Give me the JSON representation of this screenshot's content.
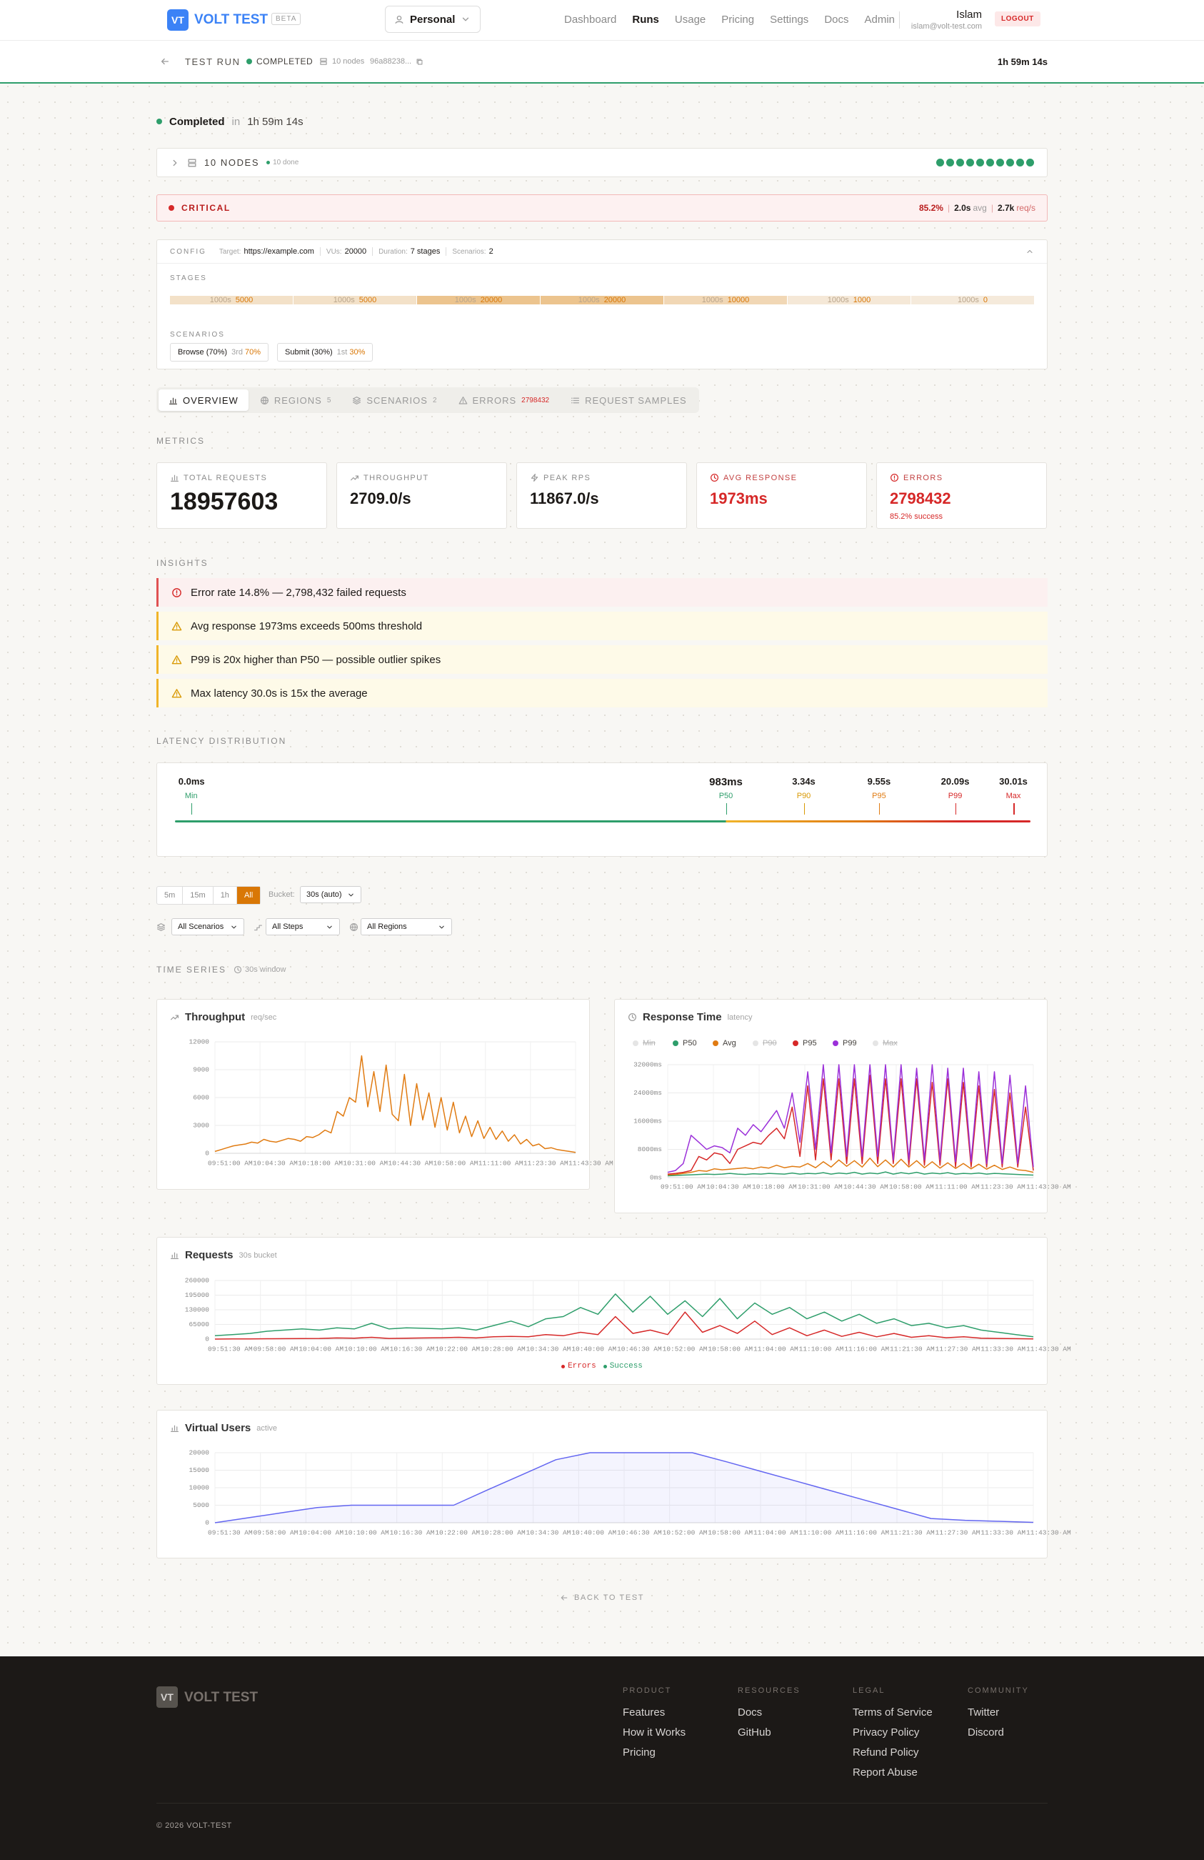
{
  "nav": {
    "logo": "VT",
    "brand": "VOLT TEST",
    "badge": "BETA",
    "workspace": "Personal",
    "links": [
      "Dashboard",
      "Runs",
      "Usage",
      "Pricing",
      "Settings",
      "Docs",
      "Admin"
    ],
    "active_link": 1,
    "user": "Islam",
    "email": "islam@volt-test.com",
    "logout": "LOGOUT"
  },
  "run_bar": {
    "title": "TEST RUN",
    "status": "COMPLETED",
    "nodes": "10 nodes",
    "id": "96a88238...",
    "duration": "1h 59m 14s"
  },
  "summary": {
    "status": "Completed",
    "in": "in",
    "duration": "1h 59m 14s"
  },
  "nodes": {
    "label": "10 NODES",
    "done": "10 done",
    "count": 10
  },
  "critical": {
    "label": "CRITICAL",
    "rate": "85.2%",
    "avg": "2.0s",
    "avg_unit": "avg",
    "rps": "2.7k",
    "rps_unit": "req/s"
  },
  "config": {
    "label": "CONFIG",
    "target_label": "Target:",
    "target": "https://example.com",
    "vus_label": "VUs:",
    "vus": "20000",
    "duration_label": "Duration:",
    "duration": "7 stages",
    "scenarios_label": "Scenarios:",
    "scenarios": "2",
    "stages_label": "STAGES",
    "stages": [
      {
        "duration": "1000s",
        "target": 5000
      },
      {
        "duration": "1000s",
        "target": 5000
      },
      {
        "duration": "1000s",
        "target": 20000
      },
      {
        "duration": "1000s",
        "target": 20000
      },
      {
        "duration": "1000s",
        "target": 10000
      },
      {
        "duration": "1000s",
        "target": 1000
      },
      {
        "duration": "1000s",
        "target": 0
      }
    ],
    "scenarios_title": "SCENARIOS",
    "scenario_list": [
      {
        "name": "Browse (70%)",
        "order": "3rd",
        "weight": "70%"
      },
      {
        "name": "Submit (30%)",
        "order": "1st",
        "weight": "30%"
      }
    ]
  },
  "tabs": [
    {
      "label": "OVERVIEW",
      "active": true
    },
    {
      "label": "REGIONS",
      "count": 5
    },
    {
      "label": "SCENARIOS",
      "count": 2
    },
    {
      "label": "ERRORS",
      "count": 2798432,
      "alert": true
    },
    {
      "label": "REQUEST SAMPLES"
    }
  ],
  "metrics": {
    "label": "METRICS",
    "cards": [
      {
        "label": "TOTAL REQUESTS",
        "value": "18957603"
      },
      {
        "label": "THROUGHPUT",
        "value": "2709.0/s"
      },
      {
        "label": "PEAK RPS",
        "value": "11867.0/s"
      },
      {
        "label": "AVG RESPONSE",
        "value": "1973ms",
        "alert": true
      },
      {
        "label": "ERRORS",
        "value": "2798432",
        "sub": "85.2% success",
        "alert": true
      }
    ]
  },
  "insights": {
    "label": "INSIGHTS",
    "items": [
      {
        "level": "error",
        "text": "Error rate 14.8% — 2,798,432 failed requests"
      },
      {
        "level": "warning",
        "text": "Avg response 1973ms exceeds 500ms threshold"
      },
      {
        "level": "warning",
        "text": "P99 is 20x higher than P50 — possible outlier spikes"
      },
      {
        "level": "warning",
        "text": "Max latency 30.0s is 15x the average"
      }
    ]
  },
  "latency": {
    "label": "LATENCY DISTRIBUTION",
    "markers": [
      {
        "value": "0.0ms",
        "label": "Min",
        "color": "#2e9e6b"
      },
      {
        "value": "983ms",
        "label": "P50",
        "color": "#2e9e6b"
      },
      {
        "value": "3.34s",
        "label": "P90",
        "color": "#d99a06"
      },
      {
        "value": "9.55s",
        "label": "P95",
        "color": "#e07b12"
      },
      {
        "value": "20.09s",
        "label": "P99",
        "color": "#d62828"
      },
      {
        "value": "30.01s",
        "label": "Max",
        "color": "#d62828"
      }
    ]
  },
  "filters": {
    "ranges": [
      "5m",
      "15m",
      "1h",
      "All"
    ],
    "active_range": 3,
    "bucket_label": "Bucket:",
    "bucket": "30s (auto)",
    "selects": [
      "All Scenarios",
      "All Steps",
      "All Regions"
    ]
  },
  "time_series": {
    "label": "TIME SERIES",
    "window": "30s window"
  },
  "chart_data": [
    {
      "type": "line",
      "title": "Throughput",
      "unit": "req/sec",
      "color": "#e07b12",
      "x_labels": [
        "09:51:00 AM",
        "10:04:30 AM",
        "10:18:00 AM",
        "10:31:00 AM",
        "10:44:30 AM",
        "10:58:00 AM",
        "11:11:00 AM",
        "11:23:30 AM",
        "11:43:30 AM"
      ],
      "values": [
        200,
        400,
        600,
        800,
        900,
        1000,
        1200,
        1100,
        1500,
        1300,
        1200,
        1400,
        1600,
        1500,
        1300,
        1800,
        1700,
        2000,
        2500,
        2200,
        4500,
        4000,
        6000,
        5500,
        10500,
        5000,
        8800,
        4500,
        9500,
        4200,
        3500,
        8500,
        3000,
        7500,
        3600,
        6500,
        2800,
        6000,
        2500,
        5500,
        2200,
        4000,
        1800,
        3500,
        1600,
        2800,
        1500,
        2400,
        1300,
        2000,
        1000,
        1500,
        800,
        1000,
        500,
        600,
        400,
        300,
        200,
        100
      ],
      "ylim": [
        0,
        12000
      ],
      "yticks": [
        0,
        3000,
        6000,
        9000,
        12000
      ],
      "grid": true
    },
    {
      "type": "line",
      "title": "Response Time",
      "unit": "latency",
      "legend": "top",
      "x_labels": [
        "09:51:00 AM",
        "10:04:30 AM",
        "10:18:00 AM",
        "10:31:00 AM",
        "10:44:30 AM",
        "10:58:00 AM",
        "11:11:00 AM",
        "11:23:30 AM",
        "11:43:30 AM"
      ],
      "series": [
        {
          "name": "Min",
          "color": "#d4d4d4",
          "hidden": true
        },
        {
          "name": "P50",
          "color": "#2e9e6b",
          "values": [
            500,
            600,
            700,
            800,
            900,
            1000,
            900,
            1000,
            1200,
            1000,
            900,
            1100,
            1000,
            1200,
            1100,
            1000,
            1300,
            1000,
            1200,
            1100,
            1400,
            1000,
            1300,
            1100,
            1500,
            1000,
            1300,
            1100,
            1600,
            1000,
            1400,
            1100,
            1500,
            1000,
            1300,
            1100,
            1400,
            1000,
            1200,
            1100,
            1300,
            1000,
            1200,
            1100,
            1000,
            900,
            800,
            700
          ]
        },
        {
          "name": "Avg",
          "color": "#e07b12",
          "values": [
            800,
            900,
            1200,
            1500,
            2000,
            1800,
            2500,
            2200,
            2400,
            2600,
            2800,
            2500,
            3000,
            2700,
            3500,
            2800,
            3200,
            3000,
            4000,
            2800,
            4500,
            3000,
            5000,
            3200,
            4800,
            3000,
            5500,
            3100,
            5000,
            3000,
            5200,
            3000,
            4800,
            2800,
            4500,
            2700,
            4200,
            2600,
            4000,
            2500,
            3800,
            2400,
            3500,
            2300,
            3000,
            2200,
            2000,
            1500
          ]
        },
        {
          "name": "P90",
          "color": "#d4d4d4",
          "hidden": true
        },
        {
          "name": "P95",
          "color": "#d62828",
          "values": [
            1000,
            1200,
            1500,
            2000,
            6000,
            5000,
            7000,
            6500,
            4000,
            8000,
            9000,
            10000,
            9500,
            12000,
            14000,
            11000,
            20000,
            6000,
            26000,
            5000,
            28000,
            5000,
            28000,
            4000,
            28000,
            4000,
            29000,
            4000,
            28000,
            4000,
            28000,
            3500,
            28000,
            3500,
            27000,
            3500,
            28000,
            3000,
            27000,
            3000,
            26000,
            3000,
            25000,
            3000,
            24000,
            3000,
            20000,
            2000
          ]
        },
        {
          "name": "P99",
          "color": "#9b30d9",
          "values": [
            1500,
            2000,
            4000,
            12000,
            10000,
            8000,
            9000,
            8500,
            7000,
            14000,
            12000,
            15000,
            13000,
            16000,
            19000,
            14000,
            24000,
            10000,
            30000,
            8000,
            32000,
            7000,
            32000,
            6000,
            32000,
            6000,
            32000,
            6000,
            32000,
            5000,
            32000,
            5000,
            31000,
            5000,
            32000,
            5000,
            31000,
            4500,
            31000,
            4500,
            30000,
            4000,
            30000,
            4000,
            29000,
            4000,
            26000,
            3000
          ]
        },
        {
          "name": "Max",
          "color": "#d4d4d4",
          "hidden": true
        }
      ],
      "ylim": [
        0,
        32000
      ],
      "yticks": [
        {
          "value": 0,
          "label": "0ms"
        },
        {
          "value": 8000,
          "label": "8000ms"
        },
        {
          "value": 16000,
          "label": "16000ms"
        },
        {
          "value": 24000,
          "label": "24000ms"
        },
        {
          "value": 32000,
          "label": "32000ms"
        }
      ],
      "grid": true
    },
    {
      "type": "line",
      "title": "Requests",
      "unit": "30s bucket",
      "legend": "bottom",
      "x_labels": [
        "09:51:30 AM",
        "09:58:00 AM",
        "10:04:00 AM",
        "10:10:00 AM",
        "10:16:30 AM",
        "10:22:00 AM",
        "10:28:00 AM",
        "10:34:30 AM",
        "10:40:00 AM",
        "10:46:30 AM",
        "10:52:00 AM",
        "10:58:00 AM",
        "11:04:00 AM",
        "11:10:00 AM",
        "11:16:00 AM",
        "11:21:30 AM",
        "11:27:30 AM",
        "11:33:30 AM",
        "11:43:30 AM"
      ],
      "series": [
        {
          "name": "Errors",
          "color": "#d62828",
          "values": [
            0,
            500,
            1000,
            1500,
            2000,
            2500,
            3000,
            5000,
            4000,
            8000,
            3000,
            4000,
            5000,
            6000,
            8000,
            5000,
            10000,
            12000,
            10000,
            20000,
            15000,
            30000,
            20000,
            100000,
            25000,
            40000,
            20000,
            120000,
            30000,
            60000,
            25000,
            80000,
            20000,
            50000,
            15000,
            40000,
            12000,
            30000,
            10000,
            25000,
            8000,
            15000,
            6000,
            10000,
            4000,
            3000,
            2000,
            1000
          ]
        },
        {
          "name": "Success",
          "color": "#2e9e6b",
          "values": [
            15000,
            20000,
            25000,
            35000,
            40000,
            45000,
            40000,
            50000,
            45000,
            70000,
            45000,
            50000,
            48000,
            45000,
            50000,
            40000,
            60000,
            80000,
            55000,
            90000,
            100000,
            140000,
            110000,
            200000,
            120000,
            190000,
            110000,
            170000,
            100000,
            180000,
            90000,
            160000,
            110000,
            140000,
            90000,
            120000,
            80000,
            110000,
            70000,
            90000,
            60000,
            70000,
            50000,
            60000,
            40000,
            30000,
            20000,
            10000
          ]
        }
      ],
      "ylim": [
        0,
        260000
      ],
      "yticks": [
        0,
        65000,
        130000,
        195000,
        260000
      ],
      "grid": true
    },
    {
      "type": "area",
      "title": "Virtual Users",
      "unit": "active",
      "color": "#6366f1",
      "x_labels": [
        "09:51:30 AM",
        "09:58:00 AM",
        "10:04:00 AM",
        "10:10:00 AM",
        "10:16:30 AM",
        "10:22:00 AM",
        "10:28:00 AM",
        "10:34:30 AM",
        "10:40:00 AM",
        "10:46:30 AM",
        "10:52:00 AM",
        "10:58:00 AM",
        "11:04:00 AM",
        "11:10:00 AM",
        "11:16:00 AM",
        "11:21:30 AM",
        "11:27:30 AM",
        "11:33:30 AM",
        "11:43:30 AM"
      ],
      "values": [
        0,
        1450,
        2900,
        4350,
        5000,
        5000,
        5000,
        5000,
        9400,
        13700,
        18000,
        20000,
        20000,
        20000,
        20000,
        17400,
        14700,
        12000,
        9300,
        6600,
        3900,
        1200,
        700,
        400,
        100
      ],
      "ylim": [
        0,
        20000
      ],
      "yticks": [
        0,
        5000,
        10000,
        15000,
        20000
      ],
      "grid": true
    }
  ],
  "back": "BACK TO TEST",
  "footer": {
    "logo": "VT",
    "brand": "VOLT TEST",
    "columns": [
      {
        "title": "PRODUCT",
        "links": [
          "Features",
          "How it Works",
          "Pricing"
        ]
      },
      {
        "title": "RESOURCES",
        "links": [
          "Docs",
          "GitHub"
        ]
      },
      {
        "title": "LEGAL",
        "links": [
          "Terms of Service",
          "Privacy Policy",
          "Refund Policy",
          "Report Abuse"
        ]
      },
      {
        "title": "COMMUNITY",
        "links": [
          "Twitter",
          "Discord"
        ]
      }
    ],
    "copyright": "© 2026 VOLT-TEST"
  }
}
